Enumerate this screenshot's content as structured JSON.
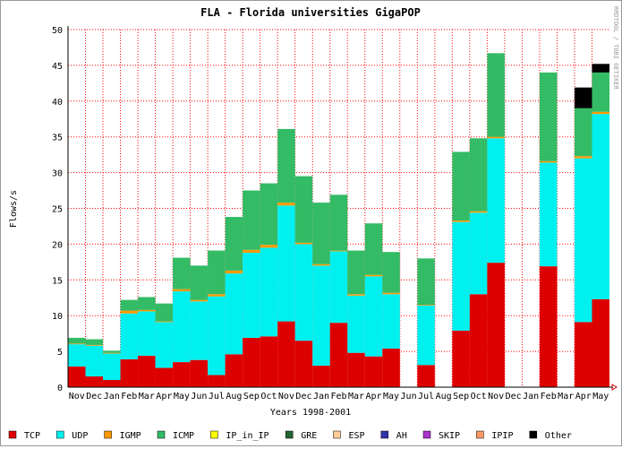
{
  "chart_data": {
    "type": "bar",
    "stacked": true,
    "title": "FLA - Florida universities GigaPOP",
    "xlabel": "Years 1998-2001",
    "ylabel": "Flows/s",
    "side_note": "RRDTOOL / TOBI OETIKER",
    "ylim": [
      0,
      50
    ],
    "ytick_step": 5,
    "grid": true,
    "legend_position": "bottom",
    "categories": [
      "Nov",
      "Dec",
      "Jan",
      "Feb",
      "Mar",
      "Apr",
      "May",
      "Jun",
      "Jul",
      "Aug",
      "Sep",
      "Oct",
      "Nov",
      "Dec",
      "Jan",
      "Feb",
      "Mar",
      "Apr",
      "May",
      "Jun",
      "Jul",
      "Aug",
      "Sep",
      "Oct",
      "Nov",
      "Dec",
      "Jan",
      "Feb",
      "Mar",
      "Apr",
      "May"
    ],
    "series": [
      {
        "name": "TCP",
        "color": "#dd0000",
        "values": [
          2.9,
          1.5,
          1.0,
          3.9,
          4.4,
          2.7,
          3.5,
          3.8,
          1.7,
          4.6,
          6.9,
          7.1,
          9.2,
          6.5,
          3.0,
          9.0,
          4.8,
          4.3,
          5.4,
          0,
          3.1,
          0,
          7.9,
          13.0,
          17.4,
          0,
          0,
          16.9,
          0,
          9.1,
          12.3
        ]
      },
      {
        "name": "UDP",
        "color": "#00f0f0",
        "values": [
          3.1,
          4.3,
          3.7,
          6.4,
          6.2,
          6.4,
          9.9,
          8.2,
          11.0,
          11.3,
          11.9,
          12.4,
          16.2,
          13.5,
          14.0,
          10.0,
          8.0,
          11.2,
          7.6,
          0,
          8.3,
          0,
          15.2,
          11.4,
          17.4,
          0,
          0,
          14.5,
          0,
          22.9,
          25.9
        ]
      },
      {
        "name": "IGMP",
        "color": "#ff9900",
        "values": [
          0.1,
          0.1,
          0.1,
          0.4,
          0.2,
          0.1,
          0.3,
          0.2,
          0.3,
          0.4,
          0.4,
          0.4,
          0.4,
          0.2,
          0.2,
          0.1,
          0.2,
          0.2,
          0.2,
          0,
          0.1,
          0,
          0.2,
          0.2,
          0.2,
          0,
          0,
          0.2,
          0,
          0.3,
          0.3
        ]
      },
      {
        "name": "ICMP",
        "color": "#33bb66",
        "values": [
          0.8,
          0.8,
          0.3,
          1.5,
          1.8,
          2.5,
          4.4,
          4.8,
          6.1,
          7.5,
          8.3,
          8.6,
          10.3,
          9.3,
          8.6,
          7.8,
          6.1,
          7.2,
          5.7,
          0,
          6.5,
          0,
          9.6,
          10.2,
          11.7,
          0,
          0,
          12.4,
          0,
          6.7,
          5.5
        ]
      },
      {
        "name": "IP_in_IP",
        "color": "#ffff00",
        "values": [
          0,
          0,
          0,
          0,
          0,
          0,
          0,
          0,
          0,
          0,
          0,
          0,
          0,
          0,
          0,
          0,
          0,
          0,
          0,
          0,
          0,
          0,
          0,
          0,
          0,
          0,
          0,
          0,
          0,
          0,
          0
        ]
      },
      {
        "name": "GRE",
        "color": "#226633",
        "values": [
          0,
          0,
          0,
          0,
          0,
          0,
          0,
          0,
          0,
          0,
          0,
          0,
          0,
          0,
          0,
          0,
          0,
          0,
          0,
          0,
          0,
          0,
          0,
          0,
          0,
          0,
          0,
          0,
          0,
          0,
          0
        ]
      },
      {
        "name": "ESP",
        "color": "#ffcc99",
        "values": [
          0,
          0,
          0,
          0,
          0,
          0,
          0,
          0,
          0,
          0,
          0,
          0,
          0,
          0,
          0,
          0,
          0,
          0,
          0,
          0,
          0,
          0,
          0,
          0,
          0,
          0,
          0,
          0,
          0,
          0,
          0
        ]
      },
      {
        "name": "AH",
        "color": "#3333aa",
        "values": [
          0,
          0,
          0,
          0,
          0,
          0,
          0,
          0,
          0,
          0,
          0,
          0,
          0,
          0,
          0,
          0,
          0,
          0,
          0,
          0,
          0,
          0,
          0,
          0,
          0,
          0,
          0,
          0,
          0,
          0,
          0
        ]
      },
      {
        "name": "SKIP",
        "color": "#aa33cc",
        "values": [
          0,
          0,
          0,
          0,
          0,
          0,
          0,
          0,
          0,
          0,
          0,
          0,
          0,
          0,
          0,
          0,
          0,
          0,
          0,
          0,
          0,
          0,
          0,
          0,
          0,
          0,
          0,
          0,
          0,
          0,
          0
        ]
      },
      {
        "name": "IPIP",
        "color": "#ff9966",
        "values": [
          0,
          0,
          0,
          0,
          0,
          0,
          0,
          0,
          0,
          0,
          0,
          0,
          0,
          0,
          0,
          0,
          0,
          0,
          0,
          0,
          0,
          0,
          0,
          0,
          0,
          0,
          0,
          0,
          0,
          0,
          0
        ]
      },
      {
        "name": "Other",
        "color": "#000000",
        "values": [
          0,
          0,
          0,
          0,
          0,
          0,
          0,
          0,
          0,
          0,
          0,
          0,
          0,
          0,
          0,
          0,
          0,
          0,
          0,
          0,
          0,
          0,
          0,
          0,
          0,
          0,
          0,
          0,
          0,
          2.9,
          1.2
        ]
      }
    ]
  }
}
